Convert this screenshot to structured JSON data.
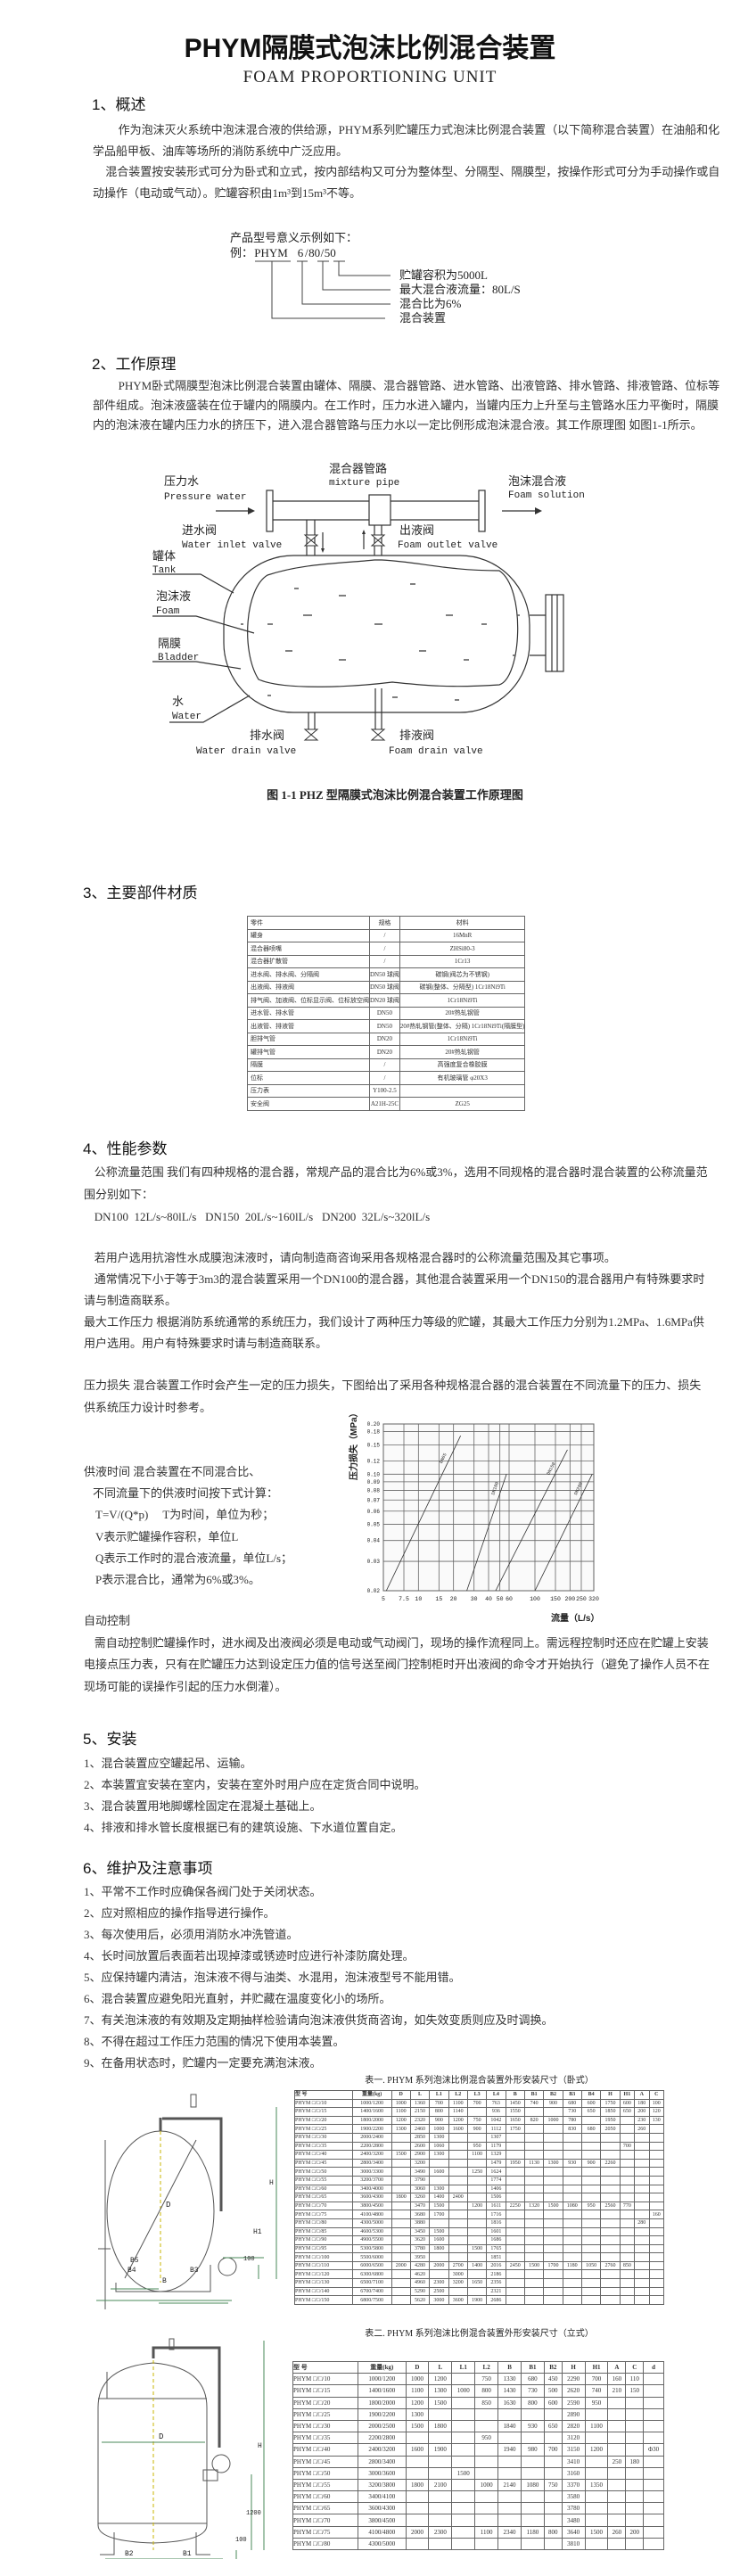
{
  "header": {
    "title": "PHYM隔膜式泡沫比例混合装置",
    "subtitle": "FOAM PROPORTIONING UNIT"
  },
  "s1": {
    "heading": "1、概述",
    "p1": [
      "作为泡沫灭火系统中泡沫混合液的供给源，PHYM系列贮罐压力式泡沫比例混合装置（以下简称混合装置）在油船和化",
      "学品船甲板、油库等场所的消防系统中广泛应用。"
    ],
    "p2": [
      "混合装置按安装形式可分为卧式和立式，按内部结构又可分为整体型、分隔型、隔膜型，按操作形式可分为手动操作或自",
      "动操作（电动或气动）。贮罐容积由1m³到15m³不等。"
    ],
    "model": {
      "intro": "产品型号意义示例如下：",
      "prefix": "例：",
      "code": "PHYM",
      "c1": "6",
      "c2": "80",
      "c3": "50",
      "meanings": [
        "贮罐容积为5000L",
        "最大混合液流量：80L/S",
        "混合比为6%",
        "混合装置"
      ]
    }
  },
  "s2": {
    "heading": "2、工作原理",
    "p": [
      "PHYM卧式隔膜型泡沫比例混合装置由罐体、隔膜、混合器管路、进水管路、出液管路、排水管路、排液管路、位标等",
      "部件组成。泡沫液盛装在位于罐内的隔膜内。在工作时，压力水进入罐内，当罐内压力上升至与主管路水压力平衡时，隔膜",
      "内的泡沫液在罐内压力水的挤压下，进入混合器管路与压力水以一定比例形成泡沫混合液。其工作原理图 如图1-1所示。"
    ],
    "diagram": {
      "mixture_cn": "混合器管路",
      "mixture_en": "mixture pipe",
      "pressure_cn": "压力水",
      "pressure_en": "Pressure water",
      "foamsol_cn": "泡沫混合液",
      "foamsol_en": "Foam solution",
      "inlet_cn": "进水阀",
      "inlet_en": "Water inlet valve",
      "outlet_cn": "出液阀",
      "outlet_en": "Foam outlet valve",
      "tank_cn": "罐体",
      "tank_en": "Tank",
      "foam_cn": "泡沫液",
      "foam_en": "Foam",
      "bladder_cn": "隔膜",
      "bladder_en": "Bladder",
      "water_cn": "水",
      "water_en": "Water",
      "wdrain_cn": "排水阀",
      "wdrain_en": "Water drain valve",
      "fdrain_cn": "排液阀",
      "fdrain_en": "Foam drain valve"
    },
    "caption": "图 1-1 PHZ 型隔膜式泡沫比例混合装置工作原理图"
  },
  "s3": {
    "heading": "3、主要部件材质",
    "table": [
      [
        "零件",
        "规格",
        "材料"
      ],
      [
        "罐身",
        "/",
        "16MnR"
      ],
      [
        "混合器喷嘴",
        "/",
        "ZHSi80-3"
      ],
      [
        "混合器扩散管",
        "/",
        "1Cr13"
      ],
      [
        "进水阀、排水阀、分隔阀",
        "DN50 球阀",
        "碳钢(阀芯为不锈钢)"
      ],
      [
        "出液阀、排液阀",
        "DN50 球阀",
        "碳钢(整体、分隔型) 1Cr18Ni9Ti"
      ],
      [
        "排气阀、加液阀、位标显示阀、位标放空阀",
        "DN20 球阀",
        "1Cr18Ni9Ti"
      ],
      [
        "进水管、排水管",
        "DN50",
        "20#热轧钢管"
      ],
      [
        "出液管、排液管",
        "DN50",
        "20#热轧钢管(整体、分隔) 1Cr18Ni9Ti(隔膜型)"
      ],
      [
        "胆排气管",
        "DN20",
        "1Cr18Ni9Ti"
      ],
      [
        "罐排气管",
        "DN20",
        "20#热轧钢管"
      ],
      [
        "隔膜",
        "/",
        "高强度复合橡胶膜"
      ],
      [
        "位标",
        "/",
        "有机玻璃管 φ20X3"
      ],
      [
        "压力表",
        "Y100-2.5",
        ""
      ],
      [
        "安全阀",
        "A21H-25C",
        "ZG25"
      ]
    ]
  },
  "s4": {
    "heading": "4、性能参数",
    "flow": [
      "公称流量范围  我们有四种规格的混合器，常规产品的混合比为6%或3%，选用不同规格的混合器时混合装置的公称流量范",
      "围分别如下："
    ],
    "dn": "DN100  12L/s~80lL/s   DN150  20L/s~160lL/s   DN200  32L/s~320lL/s",
    "p_afff": "若用户选用抗溶性水成膜泡沫液时，请向制造商咨询采用各规格混合器时的公称流量范围及其它事项。",
    "p_usual": [
      "通常情况下小于等于3m3的混合装置采用一个DN100的混合器，其他混合装置采用一个DN150的混合器用户有特殊要求时",
      "请与制造商联系。"
    ],
    "p_pressure": [
      "最大工作压力  根据消防系统通常的系统压力，我们设计了两种压力等级的贮罐，其最大工作压力分别为1.2MPa、1.6MPa供",
      "用户选用。用户有特殊要求时请与制造商联系。"
    ],
    "p_loss": [
      "压力损失  混合装置工作时会产生一定的压力损失，下图给出了采用各种规格混合器的混合装置在不同流量下的压力、损失",
      "供系统压力设计时参考。"
    ],
    "supply": [
      "供液时间  混合装置在不同混合比、",
      "不同流量下的供液时间按下式计算：",
      "T=V/(Q*p)     T为时间，单位为秒；",
      "V表示贮罐操作容积，单位L",
      "Q表示工作时的混合液流量，单位L/s；",
      "P表示混合比，通常为6%或3%。"
    ],
    "auto_heading": "自动控制",
    "auto": [
      "需自动控制贮罐操作时，进水阀及出液阀必须是电动或气动阀门，现场的操作流程同上。需远程控制时还应在贮罐上安装",
      "电接点压力表，只有在贮罐压力达到设定压力值的信号送至阀门控制柜时开出液阀的命令才开始执行（避免了操作人员不在",
      "现场可能的误操作引起的压力水倒灌）。"
    ]
  },
  "chart_data": {
    "type": "line",
    "xscale": "log",
    "yscale": "log",
    "xlabel": "流量（L/s）",
    "ylabel": "压力损失（MPa）",
    "xlim": [
      5,
      320
    ],
    "ylim": [
      0.02,
      0.2
    ],
    "grid": true,
    "xticks": [
      5,
      7.5,
      10,
      15,
      20,
      30,
      40,
      50,
      60,
      100,
      150,
      200,
      250,
      320
    ],
    "xtick_labels": [
      "5",
      "7.5",
      "10",
      "15",
      "20",
      "30",
      "40",
      "50",
      "60",
      "100",
      "150",
      "200",
      "250",
      "320"
    ],
    "yticks": [
      0.02,
      0.03,
      0.04,
      0.05,
      0.06,
      0.07,
      0.08,
      0.09,
      0.1,
      0.12,
      0.15,
      0.18,
      0.2
    ],
    "ytick_labels": [
      "0.02",
      "0.03",
      "0.04",
      "0.05",
      "0.06",
      "0.07",
      "0.08",
      "0.09",
      "0.10",
      "0.12",
      "0.15",
      "0.18",
      "0.20"
    ],
    "series": [
      {
        "name": "DN65",
        "x": [
          5.3,
          23
        ],
        "y": [
          0.02,
          0.17
        ]
      },
      {
        "name": "DN100",
        "x": [
          26,
          57
        ],
        "y": [
          0.02,
          0.1
        ]
      },
      {
        "name": "DN150",
        "x": [
          46,
          190
        ],
        "y": [
          0.02,
          0.14
        ]
      },
      {
        "name": "DN200",
        "x": [
          100,
          310
        ],
        "y": [
          0.02,
          0.1
        ]
      }
    ]
  },
  "s5": {
    "heading": "5、安装",
    "items": [
      "1、混合装置应空罐起吊、运输。",
      "2、本装置宜安装在室内，安装在室外时用户应在定货合同中说明。",
      "3、混合装置用地脚螺栓固定在混凝土基础上。",
      "4、排液和排水管长度根据已有的建筑设施、下水道位置自定。"
    ]
  },
  "s6": {
    "heading": "6、维护及注意事项",
    "items": [
      "1、平常不工作时应确保各阀门处于关闭状态。",
      "2、应对照相应的操作指导进行操作。",
      "3、每次使用后，必须用消防水冲洗管道。",
      "4、长时间放置后表面若出现掉漆或锈迹时应进行补漆防腐处理。",
      "5、应保持罐内清洁，泡沫液不得与油类、水混用，泡沫液型号不能用错。",
      "6、混合装置应避免阳光直射，并贮藏在温度变化小的场所。",
      "7、有关泡沫液的有效期及定期抽样检验请向泡沫液供货商咨询，如失效变质则应及时调换。",
      "8、不得在超过工作压力范围的情况下使用本装置。",
      "9、在备用状态时，贮罐内一定要充满泡沫液。"
    ]
  },
  "table1": {
    "title": "表一. PHYM 系列泡沫比例混合装置外形安装尺寸（卧式）",
    "rows": [
      [
        "型  号",
        "重量(kg)",
        "D",
        "L",
        "L1",
        "L2",
        "L3",
        "L4",
        "B",
        "B1",
        "B2",
        "B3",
        "B4",
        "H",
        "H1",
        "A",
        "C"
      ],
      [
        "PHYM □/□/10",
        "1000/1200",
        "1000",
        "1360",
        "700",
        "1100",
        "700",
        "763",
        "1450",
        "740",
        "900",
        "680",
        "600",
        "1750",
        "600",
        "180",
        "100"
      ],
      [
        "PHYM □/□/15",
        "1400/1600",
        "1100",
        "2150",
        "800",
        "1140",
        "",
        "936",
        "1550",
        "",
        "",
        "730",
        "650",
        "1850",
        "650",
        "200",
        "120"
      ],
      [
        "PHYM □/□/20",
        "1800/2000",
        "1200",
        "2320",
        "900",
        "1200",
        "750",
        "1042",
        "1650",
        "820",
        "1000",
        "780",
        "",
        "1950",
        "",
        "230",
        "130"
      ],
      [
        "PHYM □/□/25",
        "1900/2200",
        "1300",
        "2460",
        "1000",
        "1600",
        "900",
        "1112",
        "1750",
        "",
        "",
        "830",
        "680",
        "2050",
        "",
        "260",
        ""
      ],
      [
        "PHYM □/□/30",
        "2000/2400",
        "",
        "2850",
        "1300",
        "",
        "",
        "1307",
        "",
        "",
        "",
        "",
        "",
        "",
        "",
        "",
        ""
      ],
      [
        "PHYM □/□/35",
        "2200/2800",
        "",
        "2600",
        "1060",
        "",
        "950",
        "1179",
        "",
        "",
        "",
        "",
        "",
        "",
        "700",
        "",
        ""
      ],
      [
        "PHYM □/□/40",
        "2400/3200",
        "1500",
        "2900",
        "1300",
        "",
        "1100",
        "1329",
        "",
        "",
        "",
        "",
        "",
        "",
        "",
        "",
        ""
      ],
      [
        "PHYM □/□/45",
        "2800/3400",
        "",
        "3200",
        "",
        "",
        "",
        "1479",
        "1950",
        "1130",
        "1300",
        "930",
        "900",
        "2260",
        "",
        "",
        ""
      ],
      [
        "PHYM □/□/50",
        "3000/3300",
        "",
        "3490",
        "1600",
        "",
        "1250",
        "1624",
        "",
        "",
        "",
        "",
        "",
        "",
        "",
        "",
        ""
      ],
      [
        "PHYM □/□/55",
        "3200/3700",
        "",
        "3790",
        "",
        "",
        "",
        "1774",
        "",
        "",
        "",
        "",
        "",
        "",
        "",
        "",
        ""
      ],
      [
        "PHYM □/□/60",
        "3400/4000",
        "",
        "3060",
        "1300",
        "",
        "",
        "1406",
        "",
        "",
        "",
        "",
        "",
        "",
        "",
        "",
        ""
      ],
      [
        "PHYM □/□/65",
        "3600/4300",
        "1800",
        "3260",
        "1400",
        "2400",
        "",
        "1506",
        "",
        "",
        "",
        "",
        "",
        "",
        "",
        "",
        ""
      ],
      [
        "PHYM □/□/70",
        "3800/4500",
        "",
        "3470",
        "1500",
        "",
        "1200",
        "1611",
        "2250",
        "1320",
        "1500",
        "1080",
        "950",
        "2560",
        "770",
        "",
        ""
      ],
      [
        "PHYM □/□/75",
        "4100/4800",
        "",
        "3680",
        "1700",
        "",
        "",
        "1716",
        "",
        "",
        "",
        "",
        "",
        "",
        "",
        "",
        "160"
      ],
      [
        "PHYM □/□/80",
        "4300/5000",
        "",
        "3880",
        "",
        "",
        "",
        "1816",
        "",
        "",
        "",
        "",
        "",
        "",
        "",
        "280",
        ""
      ],
      [
        "PHYM □/□/85",
        "4600/5300",
        "",
        "3450",
        "1500",
        "",
        "",
        "1601",
        "",
        "",
        "",
        "",
        "",
        "",
        "",
        "",
        ""
      ],
      [
        "PHYM □/□/90",
        "4900/5500",
        "",
        "3620",
        "1600",
        "",
        "",
        "1686",
        "",
        "",
        "",
        "",
        "",
        "",
        "",
        "",
        ""
      ],
      [
        "PHYM □/□/95",
        "5300/5800",
        "",
        "3780",
        "1800",
        "",
        "1500",
        "1765",
        "",
        "",
        "",
        "",
        "",
        "",
        "",
        "",
        ""
      ],
      [
        "PHYM □/□/100",
        "5500/6000",
        "",
        "3950",
        "",
        "",
        "",
        "1851",
        "",
        "",
        "",
        "",
        "",
        "",
        "",
        "",
        ""
      ],
      [
        "PHYM □/□/110",
        "6000/6500",
        "2000",
        "4280",
        "2000",
        "2700",
        "1400",
        "2016",
        "2450",
        "1500",
        "1700",
        "1180",
        "1050",
        "2760",
        "850",
        "",
        ""
      ],
      [
        "PHYM □/□/120",
        "6300/6800",
        "",
        "4620",
        "",
        "3000",
        "",
        "2186",
        "",
        "",
        "",
        "",
        "",
        "",
        "",
        "",
        ""
      ],
      [
        "PHYM □/□/130",
        "6500/7100",
        "",
        "4960",
        "2300",
        "3200",
        "1650",
        "2356",
        "",
        "",
        "",
        "",
        "",
        "",
        "",
        "",
        ""
      ],
      [
        "PHYM □/□/140",
        "6700/7400",
        "",
        "5290",
        "2500",
        "",
        "",
        "2321",
        "",
        "",
        "",
        "",
        "",
        "",
        "",
        "",
        ""
      ],
      [
        "PHYM □/□/150",
        "6800/7500",
        "",
        "5620",
        "3000",
        "3600",
        "1900",
        "2686",
        "",
        "",
        "",
        "",
        "",
        "",
        "",
        "",
        ""
      ]
    ]
  },
  "table2": {
    "title": "表二. PHYM 系列泡沫比例混合装置外形安装尺寸（立式）",
    "rows": [
      [
        "型  号",
        "重量(kg)",
        "D",
        "L",
        "L1",
        "L2",
        "B",
        "B1",
        "B2",
        "H",
        "H1",
        "A",
        "C",
        "d"
      ],
      [
        "PHYM □/□/10",
        "1000/1200",
        "1000",
        "1200",
        "",
        "750",
        "1330",
        "680",
        "450",
        "2290",
        "700",
        "160",
        "110",
        ""
      ],
      [
        "PHYM □/□/15",
        "1400/1600",
        "1100",
        "1300",
        "1000",
        "800",
        "1430",
        "730",
        "500",
        "2620",
        "740",
        "210",
        "150",
        ""
      ],
      [
        "PHYM □/□/20",
        "1800/2000",
        "1200",
        "1500",
        "",
        "850",
        "1630",
        "800",
        "600",
        "2590",
        "950",
        "",
        "",
        ""
      ],
      [
        "PHYM □/□/25",
        "1900/2200",
        "1300",
        "",
        "",
        "",
        "",
        "",
        "",
        "2890",
        "",
        "",
        "",
        ""
      ],
      [
        "PHYM □/□/30",
        "2000/2500",
        "1500",
        "1800",
        "",
        "",
        "1840",
        "930",
        "650",
        "2820",
        "1100",
        "",
        "",
        ""
      ],
      [
        "PHYM □/□/35",
        "2200/2800",
        "",
        "",
        "",
        "950",
        "",
        "",
        "",
        "3120",
        "",
        "",
        "",
        ""
      ],
      [
        "PHYM □/□/40",
        "2400/3200",
        "1600",
        "1900",
        "",
        "",
        "1940",
        "980",
        "700",
        "3150",
        "1200",
        "",
        "",
        "Φ30"
      ],
      [
        "PHYM □/□/45",
        "2800/3400",
        "",
        "",
        "",
        "",
        "",
        "",
        "",
        "3410",
        "",
        "250",
        "180",
        ""
      ],
      [
        "PHYM □/□/50",
        "3000/3600",
        "",
        "",
        "1500",
        "",
        "",
        "",
        "",
        "3160",
        "",
        "",
        "",
        ""
      ],
      [
        "PHYM □/□/55",
        "3200/3800",
        "1800",
        "2100",
        "",
        "1000",
        "2140",
        "1080",
        "750",
        "3370",
        "1350",
        "",
        "",
        ""
      ],
      [
        "PHYM □/□/60",
        "3400/4100",
        "",
        "",
        "",
        "",
        "",
        "",
        "",
        "3580",
        "",
        "",
        "",
        ""
      ],
      [
        "PHYM □/□/65",
        "3600/4300",
        "",
        "",
        "",
        "",
        "",
        "",
        "",
        "3780",
        "",
        "",
        "",
        ""
      ],
      [
        "PHYM □/□/70",
        "3800/4500",
        "",
        "",
        "",
        "",
        "",
        "",
        "",
        "3480",
        "",
        "",
        "",
        ""
      ],
      [
        "PHYM □/□/75",
        "4100/4800",
        "2000",
        "2300",
        "",
        "1100",
        "2340",
        "1180",
        "800",
        "3640",
        "1500",
        "260",
        "200",
        ""
      ],
      [
        "PHYM □/□/80",
        "4300/5000",
        "",
        "",
        "",
        "",
        "",
        "",
        "",
        "3810",
        "",
        "",
        "",
        ""
      ]
    ]
  },
  "drawing_labels": {
    "h_D": "D",
    "h_H": "H",
    "h_H1": "H1",
    "h_B": "B",
    "h_B3": "B3",
    "h_B4": "B4",
    "h_B5": "B5",
    "h_100": "100",
    "v_D": "D",
    "v_H": "H",
    "v_B": "B",
    "v_B1": "B1",
    "v_B2": "B2",
    "v_1200": "1200",
    "v_100": "100"
  }
}
